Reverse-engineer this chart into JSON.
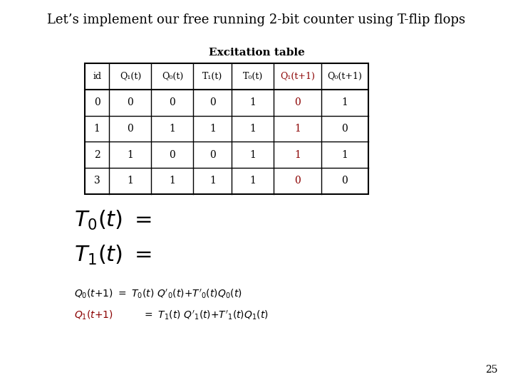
{
  "title": "Let’s implement our free running 2-bit counter using T-flip flops",
  "table_title": "Excitation table",
  "col_headers": [
    "id",
    "Q₁(t)",
    "Q₀(t)",
    "T₁(t)",
    "T₀(t)",
    "Q₁(t+1)",
    "Q₀(t+1)"
  ],
  "col_headers_red": [
    false,
    false,
    false,
    false,
    false,
    true,
    false
  ],
  "rows": [
    [
      "0",
      "0",
      "0",
      "0",
      "1",
      "0",
      "1"
    ],
    [
      "1",
      "0",
      "1",
      "1",
      "1",
      "1",
      "0"
    ],
    [
      "2",
      "1",
      "0",
      "0",
      "1",
      "1",
      "1"
    ],
    [
      "3",
      "1",
      "1",
      "1",
      "1",
      "0",
      "0"
    ]
  ],
  "rows_col6_red": [
    true,
    true,
    true,
    true
  ],
  "page_number": "25",
  "bg_color": "#ffffff",
  "text_color": "#000000",
  "red_color": "#8b0000"
}
